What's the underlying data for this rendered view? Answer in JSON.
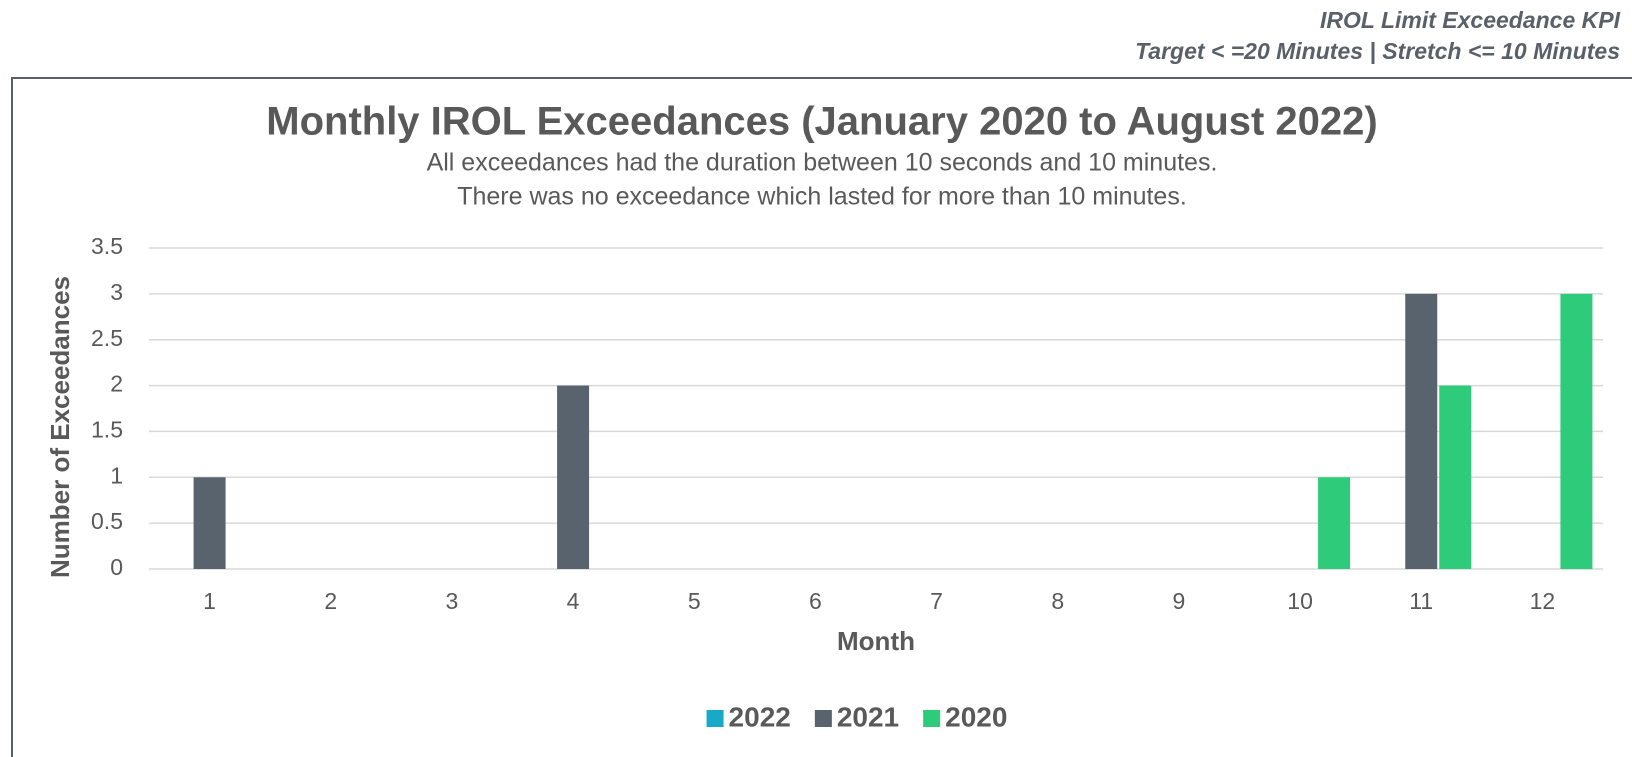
{
  "header": {
    "title": "IROL Limit Exceedance KPI",
    "subtitle": "Target < =20 Minutes | Stretch <= 10 Minutes"
  },
  "chart_data": {
    "type": "bar",
    "title": "Monthly IROL Exceedances (January 2020 to August 2022)",
    "subtitle": [
      "All exceedances had the duration between 10 seconds and 10 minutes.",
      "There was no exceedance which lasted for more than 10 minutes."
    ],
    "x_label": "Month",
    "y_label": "Number of Exceedances",
    "categories": [
      "1",
      "2",
      "3",
      "4",
      "5",
      "6",
      "7",
      "8",
      "9",
      "10",
      "11",
      "12"
    ],
    "series": [
      {
        "name": "2022",
        "color": "#17a9c6",
        "values": [
          0,
          0,
          0,
          0,
          0,
          0,
          0,
          0,
          null,
          null,
          null,
          null
        ]
      },
      {
        "name": "2021",
        "color": "#59636e",
        "values": [
          1,
          0,
          0,
          2,
          0,
          0,
          0,
          0,
          0,
          0,
          3,
          0
        ]
      },
      {
        "name": "2020",
        "color": "#2ecc7a",
        "values": [
          0,
          0,
          0,
          0,
          0,
          0,
          0,
          0,
          0,
          1,
          2,
          3
        ]
      }
    ],
    "ylim": [
      0,
      3.5
    ],
    "yticks": [
      0,
      0.5,
      1,
      1.5,
      2,
      2.5,
      3,
      3.5
    ],
    "grid": true,
    "legend": "bottom"
  }
}
